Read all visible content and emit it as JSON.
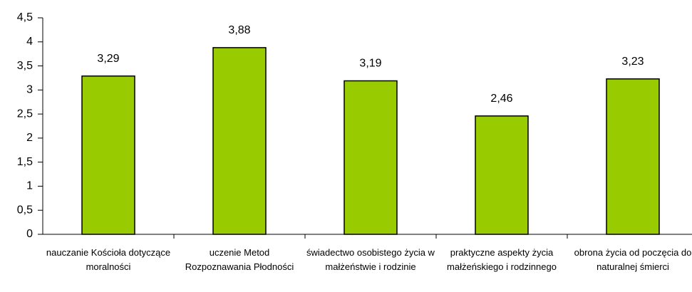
{
  "chart_data": {
    "type": "bar",
    "categories": [
      "nauczanie Kościoła dotyczące moralności",
      "uczenie Metod Rozpoznawania Płodności",
      "świadectwo osobistego życia w małżeństwie i rodzinie",
      "praktyczne aspekty życia małżeńskiego i rodzinnego",
      "obrona życia od poczęcia do naturalnej śmierci"
    ],
    "values": [
      3.29,
      3.88,
      3.19,
      2.46,
      3.23
    ],
    "value_labels": [
      "3,29",
      "3,88",
      "3,19",
      "2,46",
      "3,23"
    ],
    "color": "#99cc00",
    "ylim": [
      0,
      4.5
    ],
    "yticks": [
      0,
      {
        "value": 0.5,
        "label": "0,5"
      },
      1,
      {
        "value": 1.5,
        "label": "1,5"
      },
      2,
      {
        "value": 2.5,
        "label": "2,5"
      },
      3,
      {
        "value": 3.5,
        "label": "3,5"
      },
      4,
      {
        "value": 4.5,
        "label": "4,5"
      }
    ],
    "grid": false
  }
}
